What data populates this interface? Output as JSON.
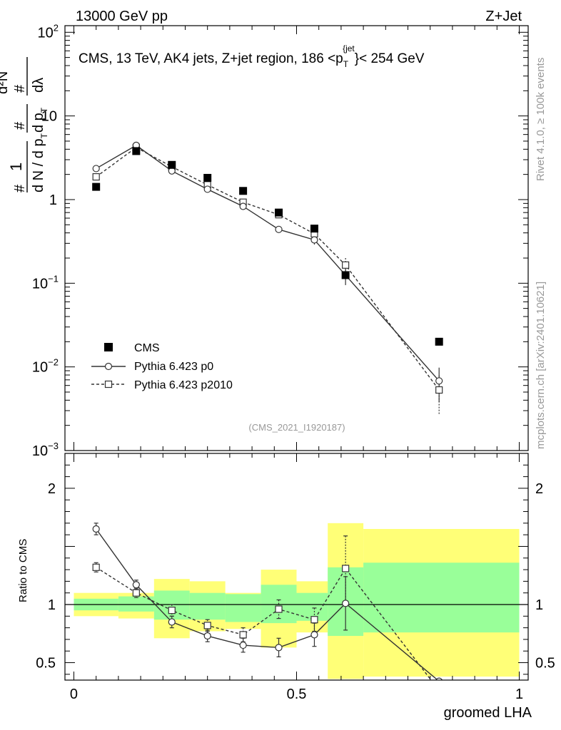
{
  "header": {
    "left": "13000 GeV pp",
    "right": "Z+Jet"
  },
  "side_labels": {
    "rivet": "Rivet 4.1.0, ≥ 100k events",
    "source": "mcplots.cern.ch [arXiv:2401.10621]"
  },
  "colors": {
    "cms": "#000000",
    "p0": "#333333",
    "p2010": "#333333",
    "band_inner": "#99ff99",
    "band_outer": "#ffff77",
    "watermark": "#999999"
  },
  "chart_data": [
    {
      "type": "scatter",
      "scale": "log",
      "title": "CMS, 13 TeV, AK4 jets, Z+jet region, 186 <p_T^{jet}< 254 GeV",
      "title_parts": {
        "main": "CMS, 13 TeV, AK4 jets, Z+jet region, 186 <p",
        "sub": "T",
        "sup": "{jet",
        "end": "}< 254 GeV"
      },
      "ylabel_parts": {
        "num": "1",
        "frac_d": "d N / d p",
        "t": "T",
        "hash": "#",
        "d2n": "d²N",
        "dpdl": "d p",
        "lambda": "dλ"
      },
      "xlim": [
        -0.02,
        1.02
      ],
      "ylim": [
        0.001,
        120
      ],
      "ytick_labels": [
        {
          "v": 100,
          "base": "10",
          "exp": "2"
        },
        {
          "v": 10,
          "base": "10",
          "exp": ""
        },
        {
          "v": 1,
          "base": "1",
          "exp": ""
        },
        {
          "v": 0.1,
          "base": "10",
          "exp": "−1"
        },
        {
          "v": 0.01,
          "base": "10",
          "exp": "−2"
        },
        {
          "v": 0.001,
          "base": "10",
          "exp": "−3"
        }
      ],
      "watermark": "(CMS_2021_I1920187)",
      "legend": [
        {
          "name": "CMS",
          "marker": "filled-square"
        },
        {
          "name": "Pythia 6.423 p0",
          "marker": "open-circle",
          "line": "solid"
        },
        {
          "name": "Pythia 6.423 p2010",
          "marker": "open-square",
          "line": "dashed"
        }
      ],
      "x": [
        0.05,
        0.14,
        0.22,
        0.3,
        0.38,
        0.46,
        0.54,
        0.61,
        0.82
      ],
      "x_edges": [
        0.0,
        0.1,
        0.18,
        0.26,
        0.34,
        0.42,
        0.5,
        0.57,
        0.65,
        1.0
      ],
      "series": [
        {
          "name": "CMS",
          "values": [
            1.42,
            3.8,
            2.6,
            1.82,
            1.27,
            0.7,
            0.45,
            0.125,
            0.02
          ]
        },
        {
          "name": "Pythia 6.423 p0",
          "values": [
            2.35,
            4.45,
            2.2,
            1.33,
            0.83,
            0.44,
            0.33,
            0.125,
            0.0068
          ],
          "errors": [
            0.08,
            0.12,
            0.07,
            0.05,
            0.05,
            0.04,
            0.04,
            0.03,
            0.003
          ]
        },
        {
          "name": "Pythia 6.423 p2010",
          "values": [
            1.87,
            4.2,
            2.47,
            1.5,
            0.93,
            0.66,
            0.39,
            0.165,
            0.0053
          ],
          "errors": [
            0.07,
            0.12,
            0.08,
            0.06,
            0.06,
            0.05,
            0.05,
            0.035,
            0.0026
          ]
        }
      ]
    },
    {
      "type": "scatter",
      "ylabel": "Ratio to CMS",
      "xlabel": "groomed LHA",
      "xlim": [
        -0.02,
        1.02
      ],
      "ylim": [
        0.35,
        2.3
      ],
      "xtick_labels": [
        {
          "v": 0,
          "label": "0"
        },
        {
          "v": 0.5,
          "label": "0.5"
        },
        {
          "v": 1,
          "label": "1"
        }
      ],
      "ytick_labels": [
        {
          "v": 2,
          "label": "2"
        },
        {
          "v": 1,
          "label": "1"
        },
        {
          "v": 0.5,
          "label": "0.5"
        }
      ],
      "band_inner": [
        [
          0.95,
          1.05
        ],
        [
          0.94,
          1.07
        ],
        [
          0.87,
          1.12
        ],
        [
          0.87,
          1.1
        ],
        [
          0.85,
          1.09
        ],
        [
          0.84,
          1.17
        ],
        [
          0.86,
          1.1
        ],
        [
          0.73,
          1.32
        ],
        [
          0.76,
          1.36
        ]
      ],
      "band_outer": [
        [
          0.9,
          1.1
        ],
        [
          0.88,
          1.1
        ],
        [
          0.71,
          1.22
        ],
        [
          0.77,
          1.2
        ],
        [
          0.79,
          1.1
        ],
        [
          0.63,
          1.3
        ],
        [
          0.76,
          1.2
        ],
        [
          0.36,
          1.7
        ],
        [
          0.38,
          1.65
        ]
      ],
      "series": [
        {
          "name": "Pythia 6.423 p0",
          "values": [
            1.65,
            1.17,
            0.85,
            0.73,
            0.65,
            0.63,
            0.74,
            1.01,
            0.34
          ],
          "errors": [
            0.05,
            0.04,
            0.05,
            0.05,
            0.06,
            0.08,
            0.1,
            0.23,
            0.0
          ]
        },
        {
          "name": "Pythia 6.423 p2010",
          "values": [
            1.32,
            1.1,
            0.95,
            0.82,
            0.74,
            0.96,
            0.87,
            1.31,
            0.26
          ],
          "errors": [
            0.04,
            0.04,
            0.05,
            0.05,
            0.06,
            0.08,
            0.1,
            0.28,
            0.0
          ]
        }
      ]
    }
  ]
}
